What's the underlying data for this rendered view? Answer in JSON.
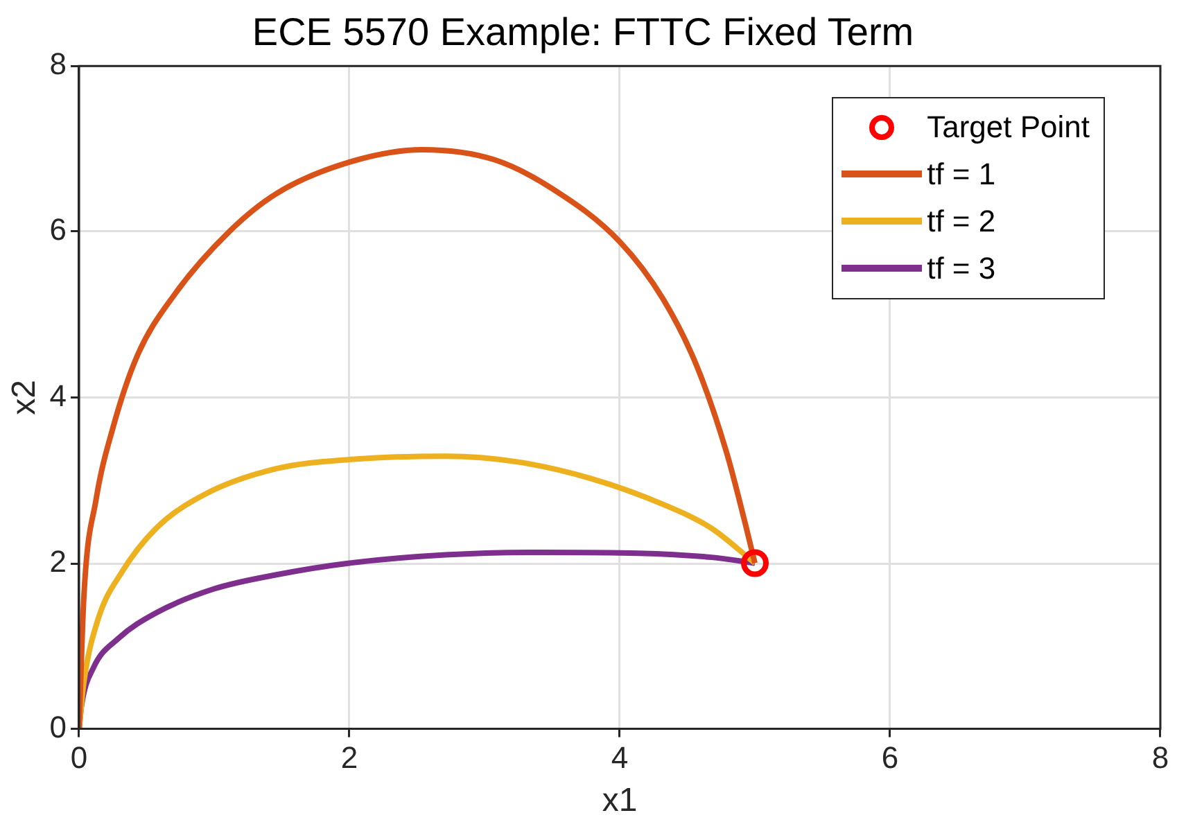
{
  "chart_data": {
    "type": "line",
    "title": "ECE 5570 Example: FTTC Fixed Term",
    "xlabel": "x1",
    "ylabel": "x2",
    "xlim": [
      0,
      8
    ],
    "ylim": [
      0,
      8
    ],
    "xticks": [
      0,
      2,
      4,
      6,
      8
    ],
    "yticks": [
      0,
      2,
      4,
      6,
      8
    ],
    "grid": true,
    "legend": "top right",
    "line_style": "solid",
    "series": [
      {
        "name": "Target Point",
        "type": "scatter",
        "marker": "circle",
        "color": "#ff0000",
        "x": [
          5
        ],
        "values": [
          2
        ]
      },
      {
        "name": "tf = 1",
        "color": "#d95319",
        "x": [
          0,
          0.036,
          0.125,
          0.25,
          0.43,
          0.71,
          1.11,
          1.46,
          2.0,
          2.54,
          3.07,
          3.5,
          4.0,
          4.32,
          4.57,
          4.79,
          4.93,
          5
        ],
        "values": [
          0,
          1.61,
          2.76,
          3.63,
          4.5,
          5.25,
          6.0,
          6.46,
          6.84,
          6.99,
          6.87,
          6.52,
          5.88,
          5.19,
          4.38,
          3.34,
          2.47,
          2
        ]
      },
      {
        "name": "tf = 2",
        "color": "#edb120",
        "x": [
          0,
          0.036,
          0.14,
          0.32,
          0.57,
          0.93,
          1.46,
          2.0,
          2.71,
          3.25,
          3.79,
          4.32,
          4.68,
          5
        ],
        "values": [
          0,
          0.57,
          1.32,
          1.9,
          2.42,
          2.83,
          3.14,
          3.25,
          3.29,
          3.22,
          3.02,
          2.71,
          2.42,
          2
        ]
      },
      {
        "name": "tf = 3",
        "color": "#7e2f8e",
        "x": [
          0,
          0.018,
          0.107,
          0.29,
          0.57,
          1.0,
          1.46,
          2.0,
          2.71,
          3.43,
          4.14,
          4.68,
          5
        ],
        "values": [
          0,
          0.28,
          0.74,
          1.09,
          1.4,
          1.69,
          1.86,
          2.0,
          2.1,
          2.13,
          2.12,
          2.07,
          2
        ]
      }
    ]
  }
}
